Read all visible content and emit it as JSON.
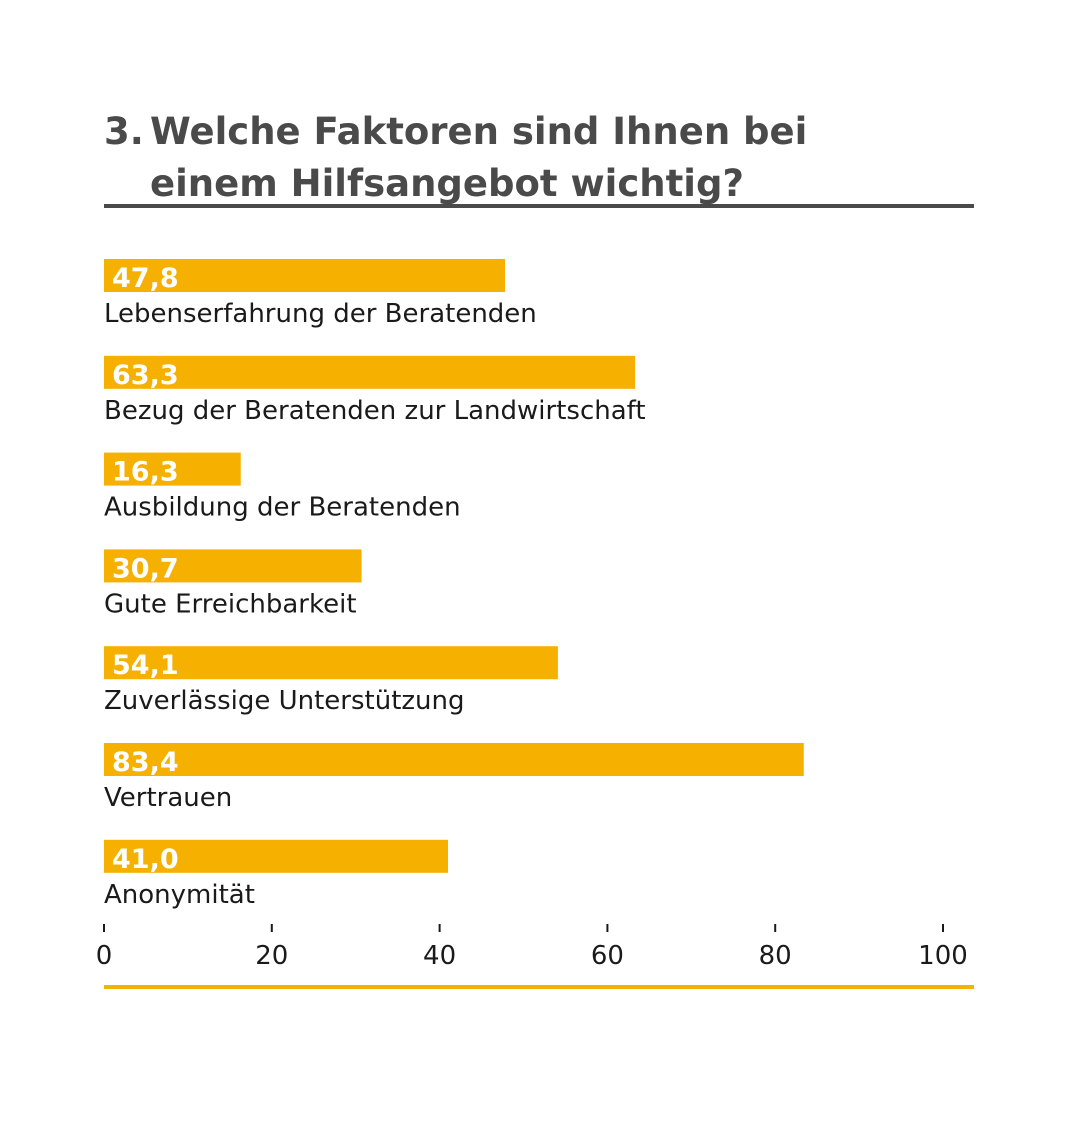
{
  "header": {
    "number": "3.",
    "title": "Welche Faktoren sind Ihnen bei einem Hilfsangebot wichtig?"
  },
  "colors": {
    "bar": "#f5b000",
    "bar_label": "#ffffff",
    "title": "#4a4a4a",
    "text": "#1a1a1a",
    "accent_rule": "#f0b400"
  },
  "chart_data": {
    "type": "bar",
    "orientation": "horizontal",
    "categories": [
      "Lebenserfahrung der Beratenden",
      "Bezug der Beratenden zur Landwirtschaft",
      "Ausbildung der Beratenden",
      "Gute Erreichbarkeit",
      "Zuverlässige Unterstützung",
      "Vertrauen",
      "Anonymität"
    ],
    "values": [
      47.8,
      63.3,
      16.3,
      30.7,
      54.1,
      83.4,
      41.0
    ],
    "value_labels": [
      "47,8",
      "63,3",
      "16,3",
      "30,7",
      "54,1",
      "83,4",
      "41,0"
    ],
    "xlim": [
      0,
      100
    ],
    "x_ticks": [
      0,
      20,
      40,
      60,
      80,
      100
    ],
    "x_tick_labels": [
      "0",
      "20",
      "40",
      "60",
      "80",
      "100"
    ],
    "grid": false,
    "legend": "none"
  }
}
